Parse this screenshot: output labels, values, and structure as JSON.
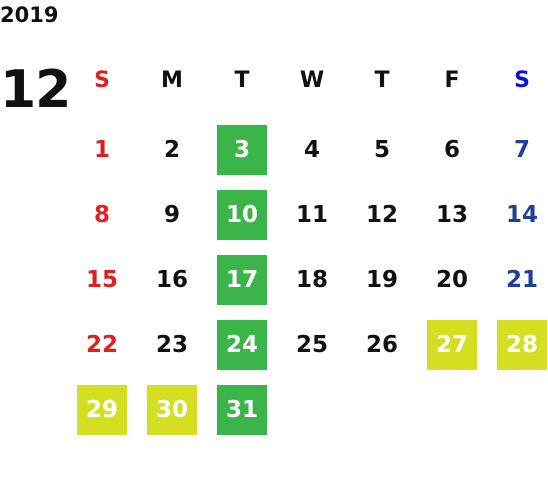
{
  "calendar": {
    "year": "2019",
    "month": "12",
    "weekdays": [
      "S",
      "M",
      "T",
      "W",
      "T",
      "F",
      "S"
    ],
    "header_colors": [
      "#e02020",
      "#111111",
      "#111111",
      "#111111",
      "#111111",
      "#111111",
      "#0a10d8"
    ],
    "day_colors": [
      "#e02020",
      "#111111",
      "#111111",
      "#111111",
      "#111111",
      "#111111",
      "#1f3f99"
    ],
    "highlight_text_color": "#ffffff",
    "weeks": [
      [
        "1",
        "2",
        {
          "label": "3",
          "background": "#3bb54a"
        },
        "4",
        "5",
        "6",
        "7"
      ],
      [
        "8",
        "9",
        {
          "label": "10",
          "background": "#3bb54a"
        },
        "11",
        "12",
        "13",
        "14"
      ],
      [
        "15",
        "16",
        {
          "label": "17",
          "background": "#3bb54a"
        },
        "18",
        "19",
        "20",
        "21"
      ],
      [
        "22",
        "23",
        {
          "label": "24",
          "background": "#3bb54a"
        },
        "25",
        "26",
        {
          "label": "27",
          "background": "#d5df22"
        },
        {
          "label": "28",
          "background": "#d5df22"
        }
      ],
      [
        {
          "label": "29",
          "background": "#d5df22"
        },
        {
          "label": "30",
          "background": "#d5df22"
        },
        {
          "label": "31",
          "background": "#3bb54a"
        }
      ]
    ]
  }
}
